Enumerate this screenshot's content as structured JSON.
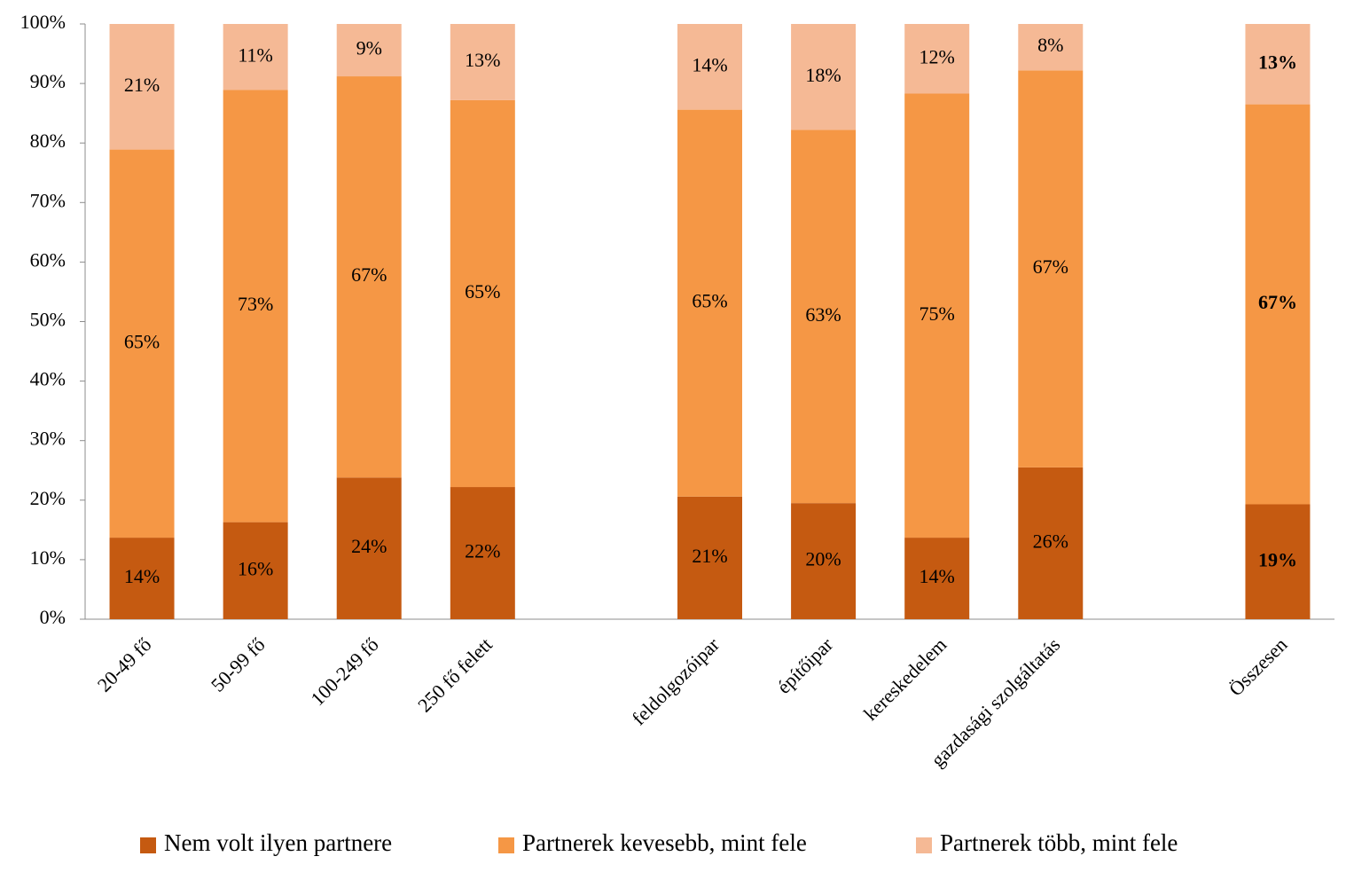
{
  "chart_data": {
    "type": "bar",
    "stacked": true,
    "percent": true,
    "title": "",
    "xlabel": "",
    "ylabel": "",
    "ylim": [
      0,
      100
    ],
    "yticks": [
      "0%",
      "10%",
      "20%",
      "30%",
      "40%",
      "50%",
      "60%",
      "70%",
      "80%",
      "90%",
      "100%"
    ],
    "grid": false,
    "legend_position": "bottom",
    "categories": [
      "20-49 fő",
      "50-99 fő",
      "100-249 fő",
      "250 fő felett",
      "",
      "feldolgozóipar",
      "építőipar",
      "kereskedelem",
      "gazdasági szolgáltatás",
      "",
      "Összesen"
    ],
    "bold_category": "Összesen",
    "series": [
      {
        "name": "Nem volt ilyen partnere",
        "color": "#c55a11",
        "values": [
          13.7,
          16.3,
          23.8,
          22.2,
          null,
          20.6,
          19.5,
          13.7,
          25.5,
          null,
          19.3
        ],
        "labels": [
          "14%",
          "16%",
          "24%",
          "22%",
          "",
          "21%",
          "20%",
          "14%",
          "26%",
          "",
          "19%"
        ]
      },
      {
        "name": "Partnerek kevesebb, mint fele",
        "color": "#f59745",
        "values": [
          65.2,
          72.6,
          67.4,
          65.0,
          null,
          65.0,
          62.7,
          74.6,
          66.7,
          null,
          67.2
        ],
        "labels": [
          "65%",
          "73%",
          "67%",
          "65%",
          "",
          "65%",
          "63%",
          "75%",
          "67%",
          "",
          "67%"
        ]
      },
      {
        "name": "Partnerek több, mint fele",
        "color": "#f5b995",
        "values": [
          21.1,
          11.1,
          8.8,
          12.8,
          null,
          14.4,
          17.8,
          11.7,
          7.8,
          null,
          13.5
        ],
        "labels": [
          "21%",
          "11%",
          "9%",
          "13%",
          "",
          "14%",
          "18%",
          "12%",
          "8%",
          "",
          "13%"
        ]
      }
    ]
  }
}
